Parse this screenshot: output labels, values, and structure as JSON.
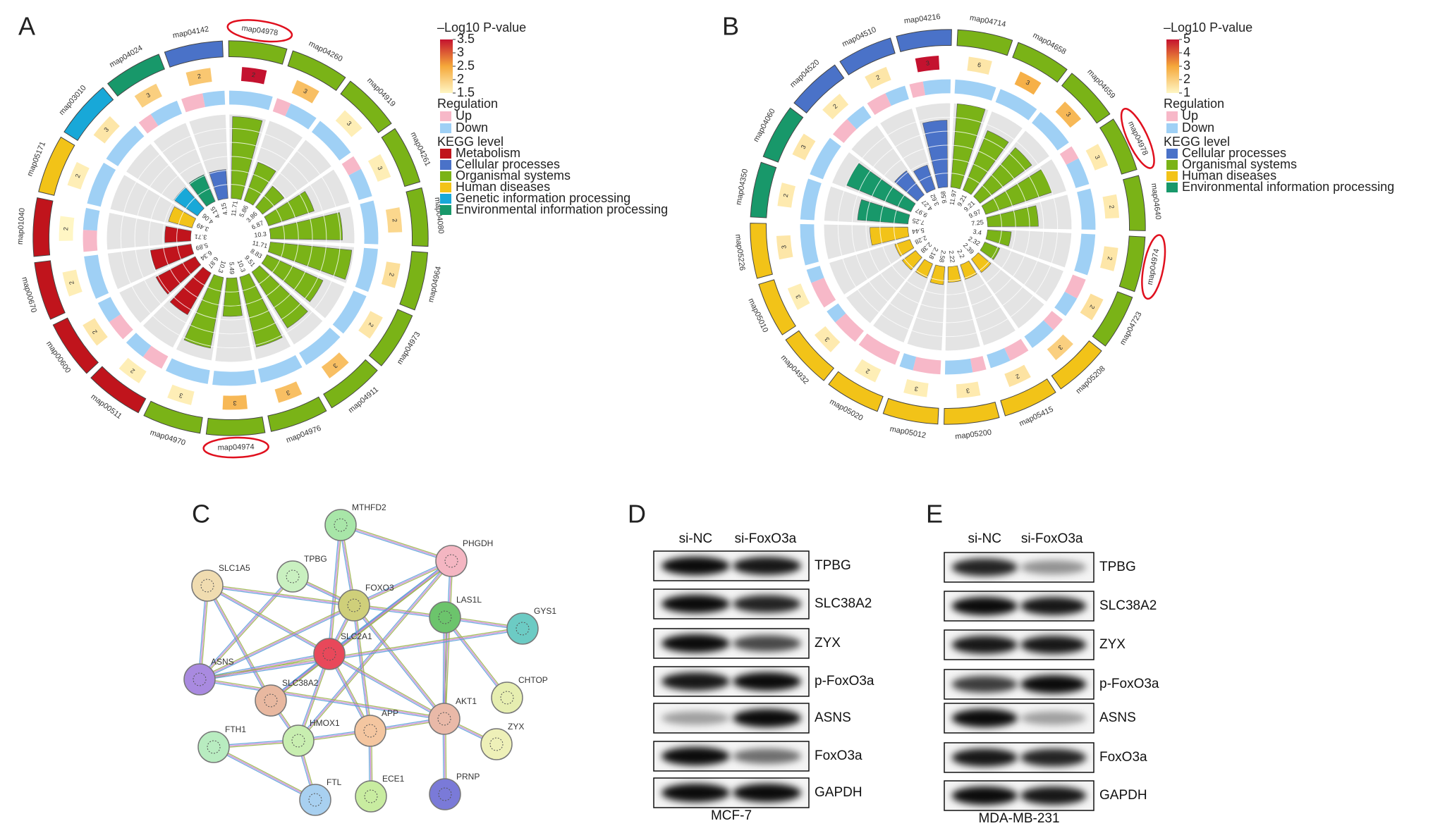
{
  "panel_labels": [
    "A",
    "B",
    "C",
    "D",
    "E"
  ],
  "kegg_a": {
    "pvalue_title": "–Log10 P-value",
    "pvalue_lim": [
      1.5,
      3.5
    ],
    "pvalue_ticks": [
      3.5,
      3,
      2.5,
      2,
      1.5
    ],
    "colormap": [
      "#fff6c4",
      "#f5a83a",
      "#c4122f"
    ],
    "regulation_title": "Regulation",
    "regulation": [
      {
        "name": "Up",
        "color": "#f7b8c8"
      },
      {
        "name": "Down",
        "color": "#9fd0f5"
      }
    ],
    "level_title": "KEGG level",
    "levels": [
      {
        "name": "Metabolism",
        "color": "#c0141c"
      },
      {
        "name": "Cellular processes",
        "color": "#4a72c8"
      },
      {
        "name": "Organismal systems",
        "color": "#7ab317"
      },
      {
        "name": "Human diseases",
        "color": "#f2c318"
      },
      {
        "name": "Genetic information processing",
        "color": "#18a8d8"
      },
      {
        "name": "Environmental information processing",
        "color": "#18986a"
      }
    ],
    "bar_lim": [
      0,
      12
    ],
    "terms": [
      {
        "id": "map04978",
        "level": 2,
        "count": 2,
        "up": 0,
        "down": 2,
        "pvalue": 3.5,
        "value": 11.71,
        "circled": true
      },
      {
        "id": "map04260",
        "level": 2,
        "count": 3,
        "up": 1,
        "down": 2,
        "pvalue": 2.2,
        "value": 5.86
      },
      {
        "id": "map04919",
        "level": 2,
        "count": 3,
        "up": 0,
        "down": 3,
        "pvalue": 1.6,
        "value": 3.86
      },
      {
        "id": "map04261",
        "level": 2,
        "count": 3,
        "up": 1,
        "down": 2,
        "pvalue": 1.6,
        "value": 6.87
      },
      {
        "id": "map04080",
        "level": 2,
        "count": 2,
        "up": 0,
        "down": 2,
        "pvalue": 1.9,
        "value": 10.3
      },
      {
        "id": "map04964",
        "level": 2,
        "count": 2,
        "up": 0,
        "down": 2,
        "pvalue": 1.8,
        "value": 11.71
      },
      {
        "id": "map04973",
        "level": 2,
        "count": 2,
        "up": 0,
        "down": 2,
        "pvalue": 1.7,
        "value": 8.83
      },
      {
        "id": "map04911",
        "level": 2,
        "count": 3,
        "up": 0,
        "down": 3,
        "pvalue": 2.2,
        "value": 9.51
      },
      {
        "id": "map04976",
        "level": 2,
        "count": 3,
        "up": 0,
        "down": 3,
        "pvalue": 2.2,
        "value": 10.3
      },
      {
        "id": "map04974",
        "level": 2,
        "count": 3,
        "up": 0,
        "down": 3,
        "pvalue": 2.3,
        "value": 5.49,
        "circled": true
      },
      {
        "id": "map04970",
        "level": 2,
        "count": 3,
        "up": 0,
        "down": 3,
        "pvalue": 1.6,
        "value": 10.3
      },
      {
        "id": "map00511",
        "level": 0,
        "count": 2,
        "up": 1,
        "down": 1,
        "pvalue": 1.6,
        "value": 6.87
      },
      {
        "id": "map00600",
        "level": 0,
        "count": 2,
        "up": 1,
        "down": 1,
        "pvalue": 1.7,
        "value": 6.34
      },
      {
        "id": "map00670",
        "level": 0,
        "count": 2,
        "up": 0,
        "down": 2,
        "pvalue": 1.6,
        "value": 5.89
      },
      {
        "id": "map01040",
        "level": 0,
        "count": 2,
        "up": 1,
        "down": 1,
        "pvalue": 1.5,
        "value": 3.71
      },
      {
        "id": "map05171",
        "level": 3,
        "count": 2,
        "up": 0,
        "down": 2,
        "pvalue": 1.6,
        "value": 3.49
      },
      {
        "id": "map03010",
        "level": 4,
        "count": 3,
        "up": 0,
        "down": 3,
        "pvalue": 1.7,
        "value": 4.06
      },
      {
        "id": "map04024",
        "level": 5,
        "count": 3,
        "up": 1,
        "down": 2,
        "pvalue": 2.0,
        "value": 4.15
      },
      {
        "id": "map04142",
        "level": 1,
        "count": 2,
        "up": 1,
        "down": 1,
        "pvalue": 2.1,
        "value": 4.15
      }
    ]
  },
  "kegg_b": {
    "pvalue_title": "–Log10 P-value",
    "pvalue_lim": [
      1,
      5
    ],
    "pvalue_ticks": [
      5,
      4,
      3,
      2,
      1
    ],
    "colormap": [
      "#fff6c4",
      "#f5a83a",
      "#c4122f"
    ],
    "regulation_title": "Regulation",
    "regulation": [
      {
        "name": "Up",
        "color": "#f7b8c8"
      },
      {
        "name": "Down",
        "color": "#9fd0f5"
      }
    ],
    "level_title": "KEGG level",
    "levels": [
      {
        "name": "Cellular processes",
        "color": "#4a72c8"
      },
      {
        "name": "Organismal systems",
        "color": "#7ab317"
      },
      {
        "name": "Human diseases",
        "color": "#f2c318"
      },
      {
        "name": "Environmental information processing",
        "color": "#18986a"
      }
    ],
    "bar_lim": [
      0,
      12
    ],
    "terms": [
      {
        "id": "map04216",
        "level": 0,
        "count": 3,
        "up": 1,
        "down": 2,
        "pvalue": 5,
        "value": 9.58
      },
      {
        "id": "map04714",
        "level": 1,
        "count": 6,
        "up": 0,
        "down": 6,
        "pvalue": 1.4,
        "value": 11.97
      },
      {
        "id": "map04658",
        "level": 1,
        "count": 3,
        "up": 0,
        "down": 3,
        "pvalue": 2.8,
        "value": 9.21
      },
      {
        "id": "map04659",
        "level": 1,
        "count": 3,
        "up": 0,
        "down": 3,
        "pvalue": 2.6,
        "value": 9.21
      },
      {
        "id": "map04978",
        "level": 1,
        "count": 3,
        "up": 1,
        "down": 2,
        "pvalue": 1.3,
        "value": 9.97,
        "circled": true
      },
      {
        "id": "map04640",
        "level": 1,
        "count": 2,
        "up": 0,
        "down": 2,
        "pvalue": 1.3,
        "value": 7.25
      },
      {
        "id": "map04974",
        "level": 1,
        "count": 2,
        "up": 0,
        "down": 2,
        "pvalue": 1.4,
        "value": 3.4,
        "circled": true
      },
      {
        "id": "map04723",
        "level": 1,
        "count": 2,
        "up": 1,
        "down": 1,
        "pvalue": 1.6,
        "value": 2.32
      },
      {
        "id": "map05208",
        "level": 2,
        "count": 3,
        "up": 1,
        "down": 2,
        "pvalue": 2.0,
        "value": 2.39
      },
      {
        "id": "map05415",
        "level": 2,
        "count": 2,
        "up": 1,
        "down": 1,
        "pvalue": 1.5,
        "value": 2.2
      },
      {
        "id": "map05200",
        "level": 2,
        "count": 3,
        "up": 1,
        "down": 2,
        "pvalue": 1.3,
        "value": 2.22
      },
      {
        "id": "map05012",
        "level": 2,
        "count": 3,
        "up": 2,
        "down": 1,
        "pvalue": 1.2,
        "value": 2.58
      },
      {
        "id": "map05020",
        "level": 2,
        "count": 2,
        "up": 2,
        "down": 0,
        "pvalue": 1.2,
        "value": 2.18
      },
      {
        "id": "map04932",
        "level": 2,
        "count": 3,
        "up": 2,
        "down": 1,
        "pvalue": 1.3,
        "value": 2.38
      },
      {
        "id": "map05010",
        "level": 2,
        "count": 3,
        "up": 2,
        "down": 1,
        "pvalue": 1.2,
        "value": 2.28
      },
      {
        "id": "map05226",
        "level": 2,
        "count": 3,
        "up": 0,
        "down": 3,
        "pvalue": 1.4,
        "value": 5.44
      },
      {
        "id": "map04350",
        "level": 3,
        "count": 2,
        "up": 0,
        "down": 2,
        "pvalue": 1.3,
        "value": 7.25
      },
      {
        "id": "map04060",
        "level": 3,
        "count": 3,
        "up": 0,
        "down": 3,
        "pvalue": 1.4,
        "value": 9.97
      },
      {
        "id": "map04520",
        "level": 0,
        "count": 2,
        "up": 1,
        "down": 1,
        "pvalue": 1.3,
        "value": 4.27
      },
      {
        "id": "map04510",
        "level": 0,
        "count": 2,
        "up": 1,
        "down": 1,
        "pvalue": 1.4,
        "value": 3.62
      }
    ]
  },
  "network": {
    "nodes": [
      {
        "label": "MTHFD2",
        "color": "#a8e6a8"
      },
      {
        "label": "PHGDH",
        "color": "#f4b6c2"
      },
      {
        "label": "TPBG",
        "color": "#c9f0c0"
      },
      {
        "label": "SLC1A5",
        "color": "#f0dcb0"
      },
      {
        "label": "FOXO3",
        "color": "#cfcf7a"
      },
      {
        "label": "LAS1L",
        "color": "#6cc46c"
      },
      {
        "label": "GYS1",
        "color": "#6ccbc4"
      },
      {
        "label": "SLC2A1",
        "color": "#e8485a"
      },
      {
        "label": "ASNS",
        "color": "#a98ae0"
      },
      {
        "label": "SLC38A2",
        "color": "#e8b8a0"
      },
      {
        "label": "CHTOP",
        "color": "#e6eeb0"
      },
      {
        "label": "AKT1",
        "color": "#e9b9a8"
      },
      {
        "label": "APP",
        "color": "#f4c6a0"
      },
      {
        "label": "ZYX",
        "color": "#eef0b8"
      },
      {
        "label": "HMOX1",
        "color": "#c8eeb0"
      },
      {
        "label": "FTH1",
        "color": "#b8ecc0"
      },
      {
        "label": "ECE1",
        "color": "#c8eca0"
      },
      {
        "label": "PRNP",
        "color": "#7a7ad8"
      },
      {
        "label": "FTL",
        "color": "#a8d0f0"
      }
    ],
    "edges": [
      [
        0,
        1
      ],
      [
        0,
        4
      ],
      [
        0,
        7
      ],
      [
        1,
        4
      ],
      [
        1,
        7
      ],
      [
        1,
        11
      ],
      [
        1,
        14
      ],
      [
        2,
        4
      ],
      [
        2,
        8
      ],
      [
        3,
        4
      ],
      [
        3,
        9
      ],
      [
        3,
        8
      ],
      [
        3,
        7
      ],
      [
        4,
        5
      ],
      [
        4,
        7
      ],
      [
        4,
        12
      ],
      [
        4,
        11
      ],
      [
        5,
        6
      ],
      [
        5,
        10
      ],
      [
        5,
        11
      ],
      [
        7,
        8
      ],
      [
        7,
        9
      ],
      [
        7,
        11
      ],
      [
        7,
        12
      ],
      [
        7,
        14
      ],
      [
        8,
        4
      ],
      [
        8,
        6
      ],
      [
        8,
        11
      ],
      [
        11,
        12
      ],
      [
        11,
        13
      ],
      [
        11,
        17
      ],
      [
        12,
        14
      ],
      [
        12,
        16
      ],
      [
        14,
        15
      ],
      [
        14,
        18
      ],
      [
        15,
        18
      ],
      [
        9,
        14
      ],
      [
        1,
        9
      ]
    ]
  },
  "blot_d": {
    "lanes": [
      "si-NC",
      "si-FoxO3a"
    ],
    "bands": [
      "TPBG",
      "SLC38A2",
      "ZYX",
      "p-FoxO3a",
      "ASNS",
      "FoxO3a",
      "GAPDH"
    ],
    "cell_line": "MCF-7"
  },
  "blot_e": {
    "lanes": [
      "si-NC",
      "si-FoxO3a"
    ],
    "bands": [
      "TPBG",
      "SLC38A2",
      "ZYX",
      "p-FoxO3a",
      "ASNS",
      "FoxO3a",
      "GAPDH"
    ],
    "cell_line": "MDA-MB-231"
  }
}
